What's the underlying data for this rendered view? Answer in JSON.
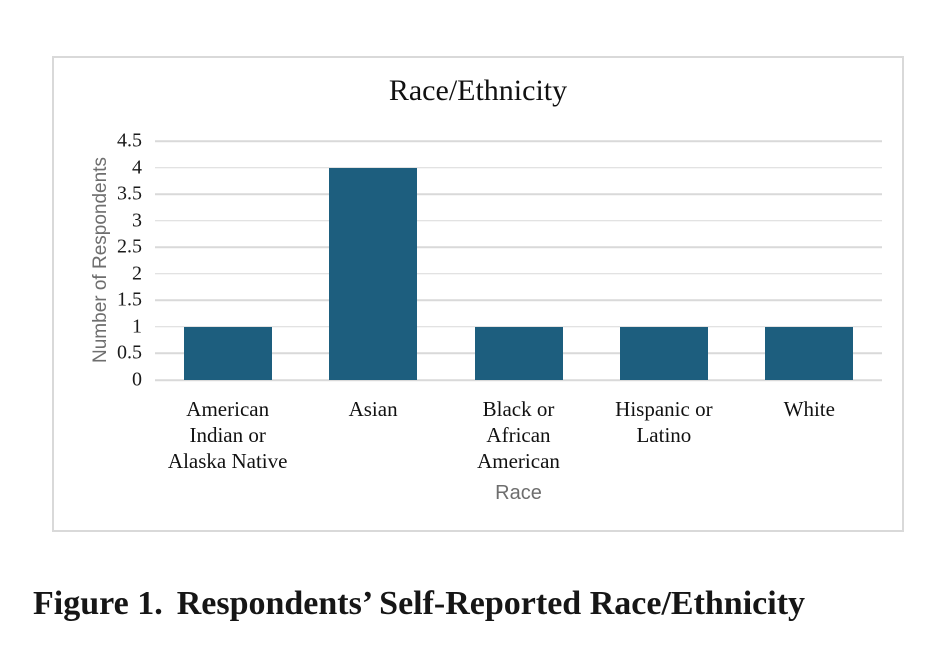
{
  "chart_data": {
    "type": "bar",
    "title": "Race/Ethnicity",
    "categories": [
      "American\nIndian or\nAlaska Native",
      "Asian",
      "Black or\nAfrican\nAmerican",
      "Hispanic or\nLatino",
      "White"
    ],
    "values": [
      1,
      4,
      1,
      1,
      1
    ],
    "xlabel": "Race",
    "ylabel": "Number of Respondents",
    "ylim": [
      0,
      4.5
    ],
    "yticks": [
      "4.5",
      "4",
      "3.5",
      "3",
      "2.5",
      "2",
      "1.5",
      "1",
      "0.5",
      "0"
    ],
    "grid": true,
    "legend": "none",
    "bar_color": "#1d5e7e",
    "grid_color": "#d9d9d9",
    "axis_title_color": "#6e6e6e"
  },
  "caption": {
    "label": "Figure 1.",
    "text": "Respondents’ Self-Reported Race/Ethnicity"
  }
}
